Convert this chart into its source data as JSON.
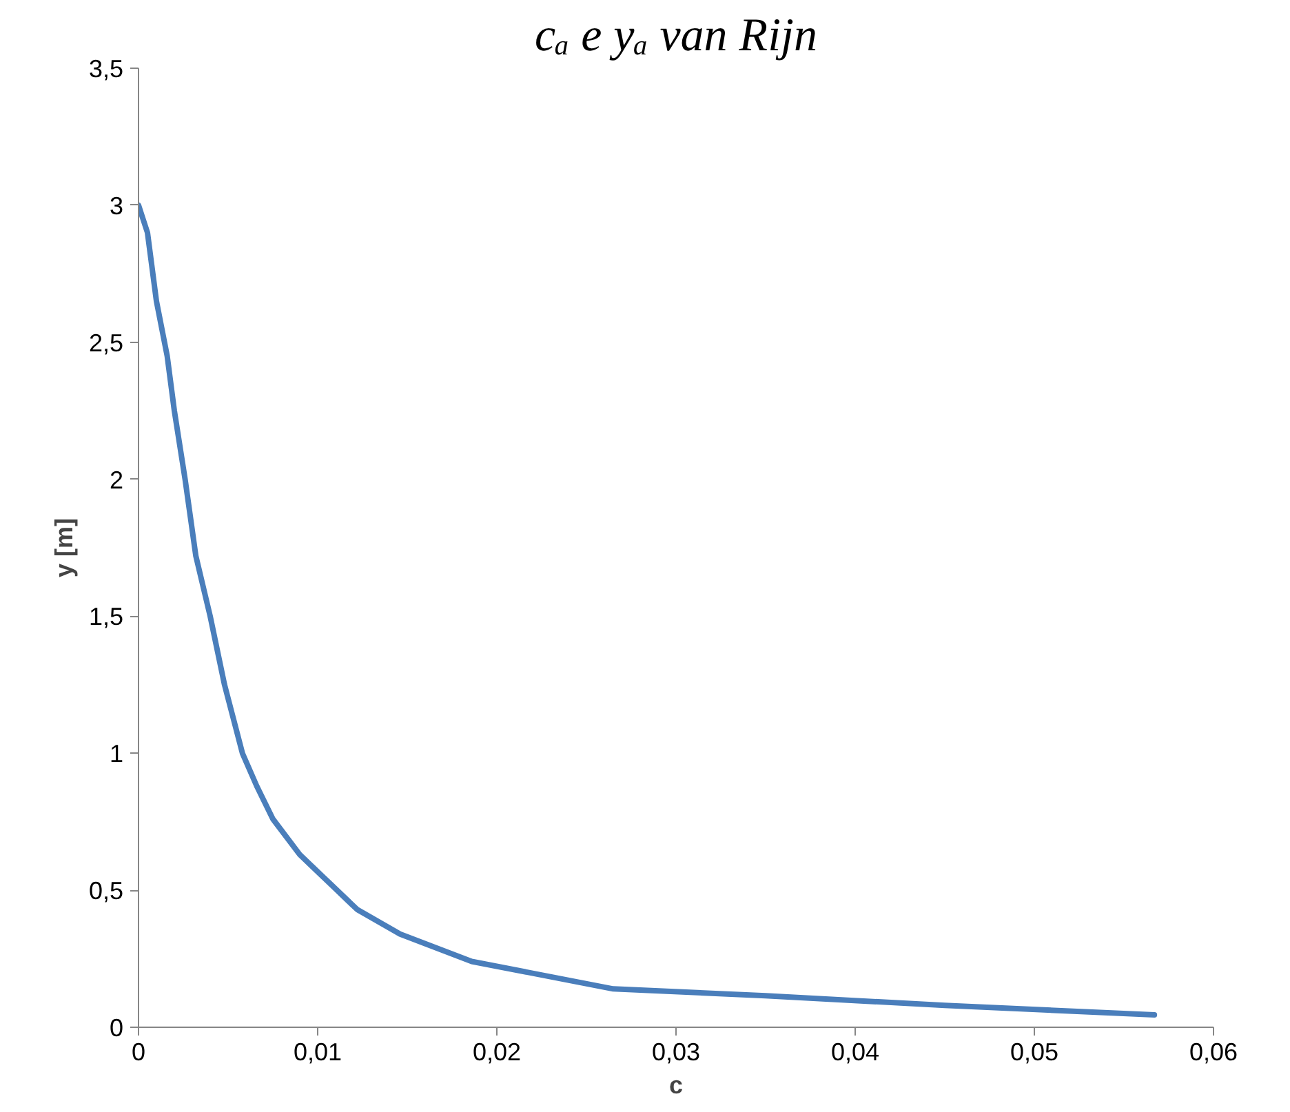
{
  "chart_data": {
    "type": "line",
    "title": "cₐ e yₐ van Rijn",
    "xlabel": "c",
    "ylabel": "y [m]",
    "x": [
      0,
      0.0005,
      0.001,
      0.0016,
      0.002,
      0.0026,
      0.0032,
      0.004,
      0.0048,
      0.0058,
      0.0066,
      0.0075,
      0.009,
      0.0106,
      0.0122,
      0.0146,
      0.0186,
      0.0265,
      0.035,
      0.045,
      0.0567
    ],
    "series": [
      {
        "color": "#4a7ebb",
        "values": [
          3.0,
          2.9,
          2.65,
          2.45,
          2.25,
          2.0,
          1.72,
          1.5,
          1.25,
          1.0,
          0.88,
          0.76,
          0.63,
          0.53,
          0.43,
          0.34,
          0.24,
          0.14,
          0.115,
          0.08,
          0.045
        ]
      }
    ],
    "xlim": [
      0,
      0.06
    ],
    "ylim": [
      0,
      3.5
    ],
    "xticks": [
      0,
      {
        "value": 0.01,
        "label": "0,01"
      },
      {
        "value": 0.02,
        "label": "0,02"
      },
      {
        "value": 0.03,
        "label": "0,03"
      },
      {
        "value": 0.04,
        "label": "0,04"
      },
      {
        "value": 0.05,
        "label": "0,05"
      },
      {
        "value": 0.06,
        "label": "0,06"
      }
    ],
    "yticks": [
      0,
      {
        "value": 0.5,
        "label": "0,5"
      },
      1,
      {
        "value": 1.5,
        "label": "1,5"
      },
      2,
      {
        "value": 2.5,
        "label": "2,5"
      },
      3,
      {
        "value": 3.5,
        "label": "3,5"
      }
    ],
    "grid": false,
    "marker": "none",
    "line_style": "solid"
  }
}
